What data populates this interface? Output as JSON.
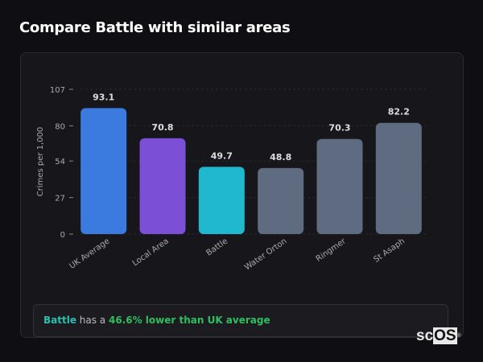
{
  "title": "Compare Battle with similar areas",
  "chart_data": {
    "type": "bar",
    "ylabel": "Crimes per 1,000",
    "ylim": [
      0,
      107
    ],
    "yticks": [
      0,
      27,
      54,
      80,
      107
    ],
    "grid": true,
    "categories": [
      "UK Average",
      "Local Area",
      "Battle",
      "Water Orton",
      "Ringmer",
      "St Asaph"
    ],
    "values": [
      93.1,
      70.8,
      49.7,
      48.8,
      70.3,
      82.2
    ],
    "value_labels": [
      "93.1",
      "70.8",
      "49.7",
      "48.8",
      "70.3",
      "82.2"
    ],
    "colors": [
      "#3b7be0",
      "#7b50d6",
      "#20b8cf",
      "#5f6b80",
      "#5f6b80",
      "#5f6b80"
    ]
  },
  "summary": {
    "location": "Battle",
    "middle": " has a ",
    "difference": "46.6% lower than UK average"
  },
  "logo": {
    "text_a": "sc",
    "text_b": "OS",
    "mark": "®"
  }
}
